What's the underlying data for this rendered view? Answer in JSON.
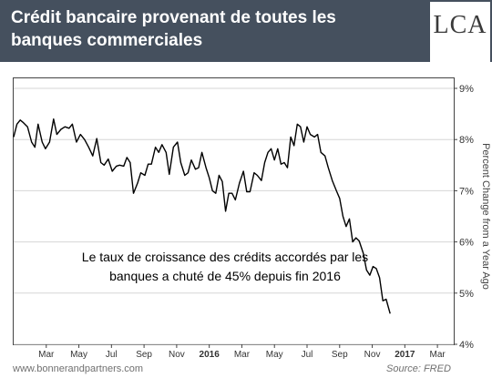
{
  "header": {
    "title": "Crédit bancaire provenant de toutes les banques commerciales",
    "logo_text": "LCA"
  },
  "annotation": "Le taux de croissance des crédits accordés par les banques a chuté de 45% depuis fin 2016",
  "footer": {
    "source_left": "www.bonnerandpartners.com",
    "source_right": "Source: FRED"
  },
  "colors": {
    "header_bg": "#45505e",
    "line": "#000000",
    "grid": "#d6d6d6"
  },
  "chart_data": {
    "type": "line",
    "title": "Crédit bancaire provenant de toutes les banques commerciales",
    "ylabel": "Percent Change from a Year Ago",
    "xlabel": "",
    "ylim": [
      4,
      9
    ],
    "xlim": [
      0,
      27
    ],
    "grid": "horizontal",
    "y_ticks": [
      {
        "value": 4,
        "label": "4%"
      },
      {
        "value": 5,
        "label": "5%"
      },
      {
        "value": 6,
        "label": "6%"
      },
      {
        "value": 7,
        "label": "7%"
      },
      {
        "value": 8,
        "label": "8%"
      },
      {
        "value": 9,
        "label": "9%"
      }
    ],
    "x_ticks": [
      {
        "value": 2,
        "label": "Mar",
        "bold": false
      },
      {
        "value": 4,
        "label": "May",
        "bold": false
      },
      {
        "value": 6,
        "label": "Jul",
        "bold": false
      },
      {
        "value": 8,
        "label": "Sep",
        "bold": false
      },
      {
        "value": 10,
        "label": "Nov",
        "bold": false
      },
      {
        "value": 12,
        "label": "2016",
        "bold": true
      },
      {
        "value": 14,
        "label": "Mar",
        "bold": false
      },
      {
        "value": 16,
        "label": "May",
        "bold": false
      },
      {
        "value": 18,
        "label": "Jul",
        "bold": false
      },
      {
        "value": 20,
        "label": "Sep",
        "bold": false
      },
      {
        "value": 22,
        "label": "Nov",
        "bold": false
      },
      {
        "value": 24,
        "label": "2017",
        "bold": true
      },
      {
        "value": 26,
        "label": "Mar",
        "bold": false
      }
    ],
    "series": [
      {
        "values": [
          [
            0.0,
            8.05
          ],
          [
            0.2,
            8.3
          ],
          [
            0.4,
            8.38
          ],
          [
            0.6,
            8.33
          ],
          [
            0.85,
            8.25
          ],
          [
            1.1,
            7.95
          ],
          [
            1.3,
            7.85
          ],
          [
            1.5,
            8.3
          ],
          [
            1.75,
            7.95
          ],
          [
            1.95,
            7.82
          ],
          [
            2.2,
            7.95
          ],
          [
            2.45,
            8.4
          ],
          [
            2.65,
            8.1
          ],
          [
            2.9,
            8.2
          ],
          [
            3.15,
            8.25
          ],
          [
            3.4,
            8.22
          ],
          [
            3.6,
            8.3
          ],
          [
            3.85,
            7.95
          ],
          [
            4.1,
            8.1
          ],
          [
            4.35,
            8.0
          ],
          [
            4.6,
            7.85
          ],
          [
            4.85,
            7.68
          ],
          [
            5.1,
            8.02
          ],
          [
            5.35,
            7.55
          ],
          [
            5.55,
            7.5
          ],
          [
            5.8,
            7.62
          ],
          [
            6.05,
            7.38
          ],
          [
            6.3,
            7.48
          ],
          [
            6.5,
            7.5
          ],
          [
            6.75,
            7.48
          ],
          [
            6.95,
            7.65
          ],
          [
            7.15,
            7.55
          ],
          [
            7.35,
            6.95
          ],
          [
            7.6,
            7.15
          ],
          [
            7.8,
            7.35
          ],
          [
            8.05,
            7.3
          ],
          [
            8.25,
            7.52
          ],
          [
            8.45,
            7.52
          ],
          [
            8.7,
            7.85
          ],
          [
            8.9,
            7.75
          ],
          [
            9.1,
            7.9
          ],
          [
            9.35,
            7.75
          ],
          [
            9.55,
            7.32
          ],
          [
            9.8,
            7.85
          ],
          [
            10.05,
            7.95
          ],
          [
            10.25,
            7.55
          ],
          [
            10.5,
            7.3
          ],
          [
            10.7,
            7.35
          ],
          [
            10.9,
            7.6
          ],
          [
            11.15,
            7.42
          ],
          [
            11.35,
            7.45
          ],
          [
            11.55,
            7.75
          ],
          [
            11.8,
            7.45
          ],
          [
            12.0,
            7.25
          ],
          [
            12.2,
            7.0
          ],
          [
            12.4,
            6.95
          ],
          [
            12.6,
            7.3
          ],
          [
            12.8,
            7.18
          ],
          [
            13.0,
            6.6
          ],
          [
            13.2,
            6.95
          ],
          [
            13.4,
            6.95
          ],
          [
            13.6,
            6.82
          ],
          [
            13.85,
            7.15
          ],
          [
            14.1,
            7.38
          ],
          [
            14.3,
            6.98
          ],
          [
            14.5,
            6.98
          ],
          [
            14.75,
            7.35
          ],
          [
            14.95,
            7.3
          ],
          [
            15.2,
            7.2
          ],
          [
            15.4,
            7.55
          ],
          [
            15.6,
            7.75
          ],
          [
            15.8,
            7.82
          ],
          [
            16.0,
            7.6
          ],
          [
            16.2,
            7.82
          ],
          [
            16.4,
            7.52
          ],
          [
            16.6,
            7.55
          ],
          [
            16.8,
            7.45
          ],
          [
            17.0,
            8.05
          ],
          [
            17.2,
            7.88
          ],
          [
            17.4,
            8.3
          ],
          [
            17.6,
            8.25
          ],
          [
            17.8,
            7.95
          ],
          [
            18.0,
            8.25
          ],
          [
            18.2,
            8.1
          ],
          [
            18.45,
            8.05
          ],
          [
            18.65,
            8.1
          ],
          [
            18.85,
            7.75
          ],
          [
            19.1,
            7.68
          ],
          [
            19.3,
            7.45
          ],
          [
            19.55,
            7.2
          ],
          [
            19.8,
            7.0
          ],
          [
            20.0,
            6.85
          ],
          [
            20.2,
            6.5
          ],
          [
            20.4,
            6.3
          ],
          [
            20.6,
            6.45
          ],
          [
            20.8,
            6.0
          ],
          [
            21.0,
            6.08
          ],
          [
            21.2,
            6.02
          ],
          [
            21.45,
            5.78
          ],
          [
            21.65,
            5.45
          ],
          [
            21.85,
            5.35
          ],
          [
            22.05,
            5.52
          ],
          [
            22.25,
            5.48
          ],
          [
            22.45,
            5.3
          ],
          [
            22.65,
            4.85
          ],
          [
            22.85,
            4.88
          ],
          [
            23.1,
            4.6
          ]
        ]
      }
    ]
  }
}
